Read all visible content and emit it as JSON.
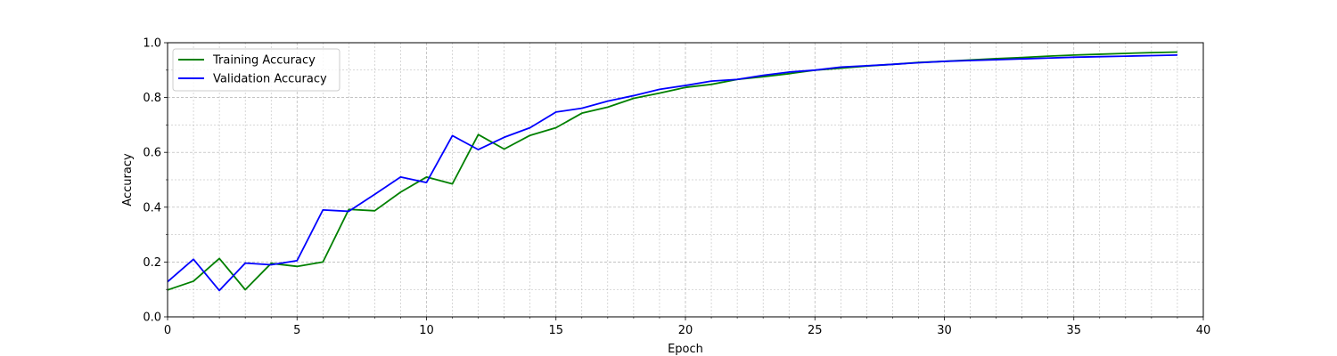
{
  "chart_data": {
    "type": "line",
    "title": "",
    "xlabel": "Epoch",
    "ylabel": "Accuracy",
    "xlim": [
      0,
      40
    ],
    "ylim": [
      0,
      1.0
    ],
    "x_ticks": [
      0,
      5,
      10,
      15,
      20,
      25,
      30,
      35,
      40
    ],
    "x_tick_labels": [
      "0",
      "5",
      "10",
      "15",
      "20",
      "25",
      "30",
      "35",
      "40"
    ],
    "x_minor_step": 1,
    "y_ticks": [
      0,
      0.2,
      0.4,
      0.6,
      0.8,
      1.0
    ],
    "y_tick_labels": [
      "0.0",
      "0.2",
      "0.4",
      "0.6",
      "0.8",
      "1.0"
    ],
    "y_minor_step": 0.1,
    "grid": true,
    "legend_position": "upper-left",
    "x": [
      0,
      1,
      2,
      3,
      4,
      5,
      6,
      7,
      8,
      9,
      10,
      11,
      12,
      13,
      14,
      15,
      16,
      17,
      18,
      19,
      20,
      21,
      22,
      23,
      24,
      25,
      26,
      27,
      28,
      29,
      30,
      31,
      32,
      33,
      34,
      35,
      36,
      37,
      38,
      39
    ],
    "series": [
      {
        "name": "Training Accuracy",
        "color": "#008000",
        "values": [
          0.098,
          0.13,
          0.213,
          0.099,
          0.195,
          0.184,
          0.2,
          0.392,
          0.387,
          0.455,
          0.51,
          0.485,
          0.665,
          0.612,
          0.662,
          0.69,
          0.743,
          0.765,
          0.797,
          0.816,
          0.837,
          0.848,
          0.866,
          0.876,
          0.887,
          0.9,
          0.907,
          0.915,
          0.921,
          0.928,
          0.932,
          0.937,
          0.942,
          0.946,
          0.951,
          0.955,
          0.958,
          0.961,
          0.964,
          0.966
        ]
      },
      {
        "name": "Validation Accuracy",
        "color": "#0000ff",
        "values": [
          0.128,
          0.21,
          0.096,
          0.196,
          0.19,
          0.205,
          0.39,
          0.385,
          0.447,
          0.51,
          0.49,
          0.661,
          0.61,
          0.655,
          0.69,
          0.747,
          0.761,
          0.787,
          0.807,
          0.83,
          0.844,
          0.86,
          0.866,
          0.881,
          0.893,
          0.9,
          0.911,
          0.916,
          0.921,
          0.927,
          0.932,
          0.935,
          0.938,
          0.941,
          0.944,
          0.947,
          0.949,
          0.951,
          0.953,
          0.955
        ]
      }
    ]
  }
}
